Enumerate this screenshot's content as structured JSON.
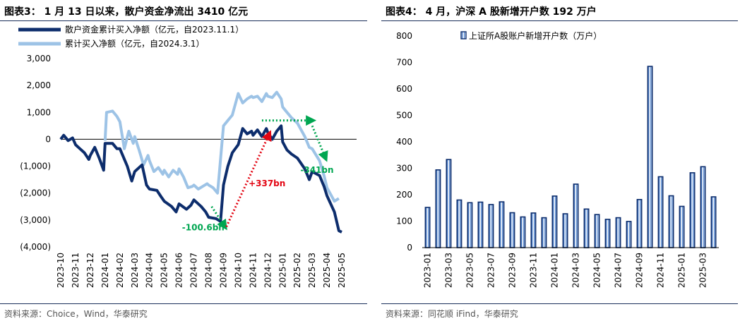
{
  "left": {
    "title": "图表3：  1 月 13 日以来，散户资金净流出 3410 亿元",
    "source": "资料来源：Choice，Wind，华泰研究"
  },
  "right": {
    "title": "图表4：  4 月，沪深 A 股新增开户数 192 万户",
    "source": "资料来源：同花顺 iFind，华泰研究"
  },
  "chart_data": [
    {
      "type": "line",
      "title": "",
      "ylim": [
        -4000,
        3000
      ],
      "y_ticks": [
        "3,000",
        "2,000",
        "1,000",
        "0",
        "(1,000)",
        "(2,000)",
        "(3,000)",
        "(4,000)"
      ],
      "y_tick_values": [
        3000,
        2000,
        1000,
        0,
        -1000,
        -2000,
        -3000,
        -4000
      ],
      "x_range": [
        "2023-10",
        "2025-06"
      ],
      "x_ticks": [
        "2023-10",
        "2023-11",
        "2023-12",
        "2024-01",
        "2024-02",
        "2024-03",
        "2024-04",
        "2024-05",
        "2024-06",
        "2024-07",
        "2024-08",
        "2024-09",
        "2024-10",
        "2024-11",
        "2024-12",
        "2025-01",
        "2025-02",
        "2025-03",
        "2025-04",
        "2025-05"
      ],
      "series": [
        {
          "name": "散户资金累计买入净额（亿元，自2023.11.1）",
          "color": "#0d2d6c",
          "points": [
            [
              "2023-10",
              0
            ],
            [
              "2023-10.2",
              150
            ],
            [
              "2023-10.5",
              -50
            ],
            [
              "2023-10.8",
              50
            ],
            [
              "2023-11",
              -200
            ],
            [
              "2023-11.3",
              -350
            ],
            [
              "2023-11.6",
              -500
            ],
            [
              "2023-11.9",
              -750
            ],
            [
              "2023-12",
              -600
            ],
            [
              "2023-12.3",
              -300
            ],
            [
              "2023-12.6",
              -700
            ],
            [
              "2023-12.9",
              -1150
            ],
            [
              "2024-01",
              -150
            ],
            [
              "2024-01.5",
              -150
            ],
            [
              "2024-01.8",
              -350
            ],
            [
              "2024-02",
              -350
            ],
            [
              "2024-02.5",
              -1000
            ],
            [
              "2024-02.8",
              -1550
            ],
            [
              "2024-03",
              -1200
            ],
            [
              "2024-03.5",
              -950
            ],
            [
              "2024-03.8",
              -1700
            ],
            [
              "2024-04",
              -1850
            ],
            [
              "2024-04.5",
              -1900
            ],
            [
              "2024-04.8",
              -2150
            ],
            [
              "2024-05",
              -2300
            ],
            [
              "2024-05.5",
              -2500
            ],
            [
              "2024-05.8",
              -2700
            ],
            [
              "2024-06",
              -2400
            ],
            [
              "2024-06.5",
              -2600
            ],
            [
              "2024-06.8",
              -2450
            ],
            [
              "2024-07",
              -2250
            ],
            [
              "2024-07.5",
              -2500
            ],
            [
              "2024-07.8",
              -2700
            ],
            [
              "2024-08",
              -2900
            ],
            [
              "2024-08.5",
              -2950
            ],
            [
              "2024-08.8",
              -3050
            ],
            [
              "2024-09",
              -1700
            ],
            [
              "2024-09.3",
              -1000
            ],
            [
              "2024-09.6",
              -500
            ],
            [
              "2024-10",
              -200
            ],
            [
              "2024-10.3",
              400
            ],
            [
              "2024-10.6",
              200
            ],
            [
              "2024-10.9",
              300
            ],
            [
              "2024-11",
              150
            ],
            [
              "2024-11.3",
              350
            ],
            [
              "2024-11.6",
              100
            ],
            [
              "2024-11.9",
              400
            ],
            [
              "2024-12",
              250
            ],
            [
              "2024-12.3",
              0
            ],
            [
              "2024-12.6",
              300
            ],
            [
              "2024-12.9",
              500
            ],
            [
              "2025-01",
              -100
            ],
            [
              "2025-01.3",
              -400
            ],
            [
              "2025-01.6",
              -550
            ],
            [
              "2025-02",
              -700
            ],
            [
              "2025-02.5",
              -1100
            ],
            [
              "2025-02.8",
              -1500
            ],
            [
              "2025-03",
              -1200
            ],
            [
              "2025-03.5",
              -1350
            ],
            [
              "2025-03.8",
              -1750
            ],
            [
              "2025-04",
              -2100
            ],
            [
              "2025-04.5",
              -2700
            ],
            [
              "2025-04.8",
              -3400
            ],
            [
              "2025-05",
              -3450
            ]
          ]
        },
        {
          "name": "累计买入净额（亿元，自2024.3.1）",
          "color": "#9dc3e6",
          "points": [
            [
              "2024-01",
              -50
            ],
            [
              "2024-01.1",
              1000
            ],
            [
              "2024-01.5",
              1050
            ],
            [
              "2024-01.8",
              850
            ],
            [
              "2024-02",
              650
            ],
            [
              "2024-02.3",
              -350
            ],
            [
              "2024-02.6",
              300
            ],
            [
              "2024-02.9",
              -150
            ],
            [
              "2024-03",
              100
            ],
            [
              "2024-03.3",
              -400
            ],
            [
              "2024-03.6",
              -950
            ],
            [
              "2024-03.9",
              -600
            ],
            [
              "2024-04",
              -800
            ],
            [
              "2024-04.3",
              -1200
            ],
            [
              "2024-04.6",
              -1050
            ],
            [
              "2024-04.9",
              -1300
            ],
            [
              "2024-05",
              -1150
            ],
            [
              "2024-05.3",
              -1400
            ],
            [
              "2024-05.6",
              -1150
            ],
            [
              "2024-05.9",
              -1300
            ],
            [
              "2024-06",
              -1100
            ],
            [
              "2024-06.3",
              -1400
            ],
            [
              "2024-06.6",
              -1800
            ],
            [
              "2024-06.9",
              -1750
            ],
            [
              "2024-07",
              -1700
            ],
            [
              "2024-07.3",
              -1850
            ],
            [
              "2024-07.6",
              -1750
            ],
            [
              "2024-07.9",
              -1650
            ],
            [
              "2024-08",
              -1700
            ],
            [
              "2024-08.3",
              -1800
            ],
            [
              "2024-08.6",
              -2000
            ],
            [
              "2024-09",
              500
            ],
            [
              "2024-09.3",
              700
            ],
            [
              "2024-09.6",
              900
            ],
            [
              "2024-10",
              1700
            ],
            [
              "2024-10.3",
              1350
            ],
            [
              "2024-10.6",
              1500
            ],
            [
              "2024-10.9",
              1600
            ],
            [
              "2024-11",
              1550
            ],
            [
              "2024-11.3",
              1600
            ],
            [
              "2024-11.6",
              1400
            ],
            [
              "2024-11.9",
              1700
            ],
            [
              "2024-12",
              1600
            ],
            [
              "2024-12.3",
              1550
            ],
            [
              "2024-12.6",
              1750
            ],
            [
              "2024-12.9",
              1500
            ],
            [
              "2025-01",
              1200
            ],
            [
              "2025-01.3",
              1000
            ],
            [
              "2025-01.6",
              800
            ],
            [
              "2025-02",
              600
            ],
            [
              "2025-02.5",
              100
            ],
            [
              "2025-02.8",
              -300
            ],
            [
              "2025-03",
              -350
            ],
            [
              "2025-03.5",
              -800
            ],
            [
              "2025-03.8",
              -1350
            ],
            [
              "2025-04",
              -1800
            ],
            [
              "2025-04.5",
              -2300
            ],
            [
              "2025-04.8",
              -2200
            ]
          ]
        }
      ],
      "annotations": [
        {
          "text": "-100.6bn",
          "color": "#00a651"
        },
        {
          "text": "+337bn",
          "color": "#e30613"
        },
        {
          "text": "-341bn",
          "color": "#00a651"
        }
      ]
    },
    {
      "type": "bar",
      "title": "",
      "ylim": [
        0,
        800
      ],
      "y_ticks": [
        "800",
        "700",
        "600",
        "500",
        "400",
        "300",
        "200",
        "100",
        "0"
      ],
      "y_tick_values": [
        800,
        700,
        600,
        500,
        400,
        300,
        200,
        100,
        0
      ],
      "x_tick_labels": [
        "2023-01",
        "2023-03",
        "2023-05",
        "2023-07",
        "2023-09",
        "2023-11",
        "2024-01",
        "2024-03",
        "2024-05",
        "2024-07",
        "2024-09",
        "2024-11",
        "2025-01",
        "2025-03"
      ],
      "categories": [
        "2023-01",
        "2023-02",
        "2023-03",
        "2023-04",
        "2023-05",
        "2023-06",
        "2023-07",
        "2023-08",
        "2023-09",
        "2023-10",
        "2023-11",
        "2023-12",
        "2024-01",
        "2024-02",
        "2024-03",
        "2024-04",
        "2024-05",
        "2024-06",
        "2024-07",
        "2024-08",
        "2024-09",
        "2024-10",
        "2024-11",
        "2024-12",
        "2025-01",
        "2025-02",
        "2025-03",
        "2025-04"
      ],
      "series": [
        {
          "name": "上证所A股账户新增开户数（万户）",
          "color": "#0d2d6c",
          "values": [
            152,
            294,
            333,
            180,
            170,
            172,
            163,
            173,
            132,
            116,
            131,
            113,
            195,
            128,
            240,
            146,
            125,
            107,
            113,
            99,
            182,
            685,
            268,
            196,
            156,
            283,
            306,
            192
          ]
        }
      ]
    }
  ]
}
